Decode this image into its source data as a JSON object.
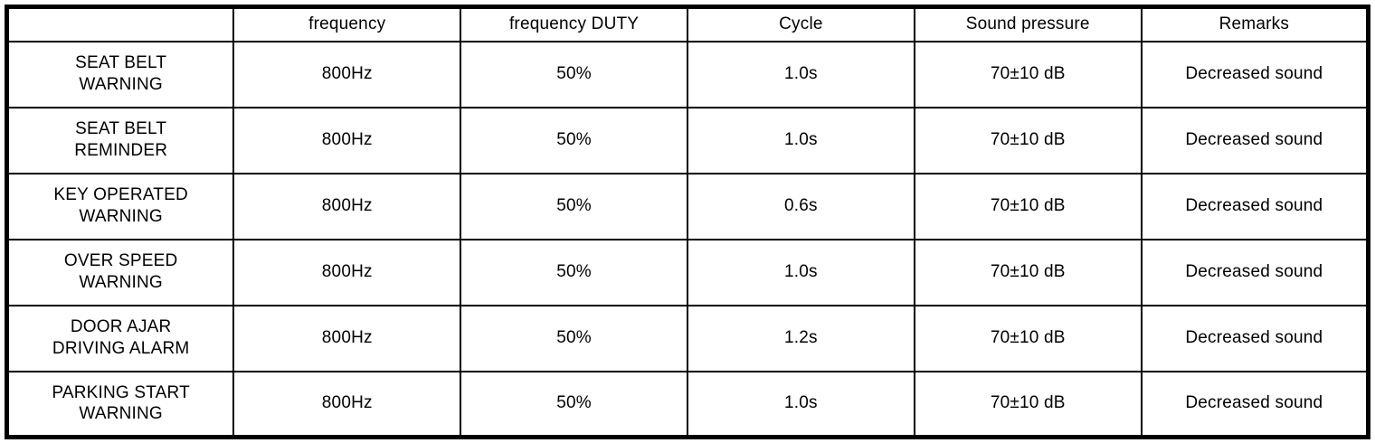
{
  "table": {
    "columns": {
      "name": "",
      "frequency": "frequency",
      "duty": "frequency DUTY",
      "cycle": "Cycle",
      "sound_pressure": "Sound pressure",
      "remarks": "Remarks"
    },
    "rows": [
      {
        "name": "SEAT BELT\nWARNING",
        "frequency": "800Hz",
        "duty": "50%",
        "cycle": "1.0s",
        "sound_pressure": "70±10 dB",
        "remarks": "Decreased sound"
      },
      {
        "name": "SEAT BELT\nREMINDER",
        "frequency": "800Hz",
        "duty": "50%",
        "cycle": "1.0s",
        "sound_pressure": "70±10 dB",
        "remarks": "Decreased sound"
      },
      {
        "name": "KEY OPERATED\nWARNING",
        "frequency": "800Hz",
        "duty": "50%",
        "cycle": "0.6s",
        "sound_pressure": "70±10 dB",
        "remarks": "Decreased sound"
      },
      {
        "name": "OVER SPEED\nWARNING",
        "frequency": "800Hz",
        "duty": "50%",
        "cycle": "1.0s",
        "sound_pressure": "70±10 dB",
        "remarks": "Decreased sound"
      },
      {
        "name": "DOOR AJAR\nDRIVING ALARM",
        "frequency": "800Hz",
        "duty": "50%",
        "cycle": "1.2s",
        "sound_pressure": "70±10 dB",
        "remarks": "Decreased sound"
      },
      {
        "name": "PARKING START\nWARNING",
        "frequency": "800Hz",
        "duty": "50%",
        "cycle": "1.0s",
        "sound_pressure": "70±10 dB",
        "remarks": "Decreased sound"
      }
    ],
    "border_color": "#000000"
  }
}
